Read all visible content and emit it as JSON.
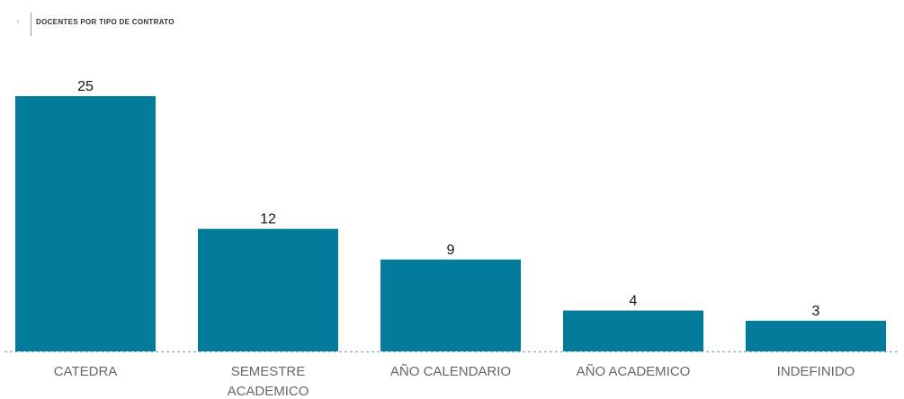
{
  "chart_data": {
    "type": "bar",
    "title": "DOCENTES POR TIPO DE CONTRATO",
    "categories": [
      "CATEDRA",
      "SEMESTRE ACADEMICO",
      "AÑO CALENDARIO",
      "AÑO ACADEMICO",
      "INDEFINIDO"
    ],
    "values": [
      25,
      12,
      9,
      4,
      3
    ],
    "color": "#037c9b"
  }
}
